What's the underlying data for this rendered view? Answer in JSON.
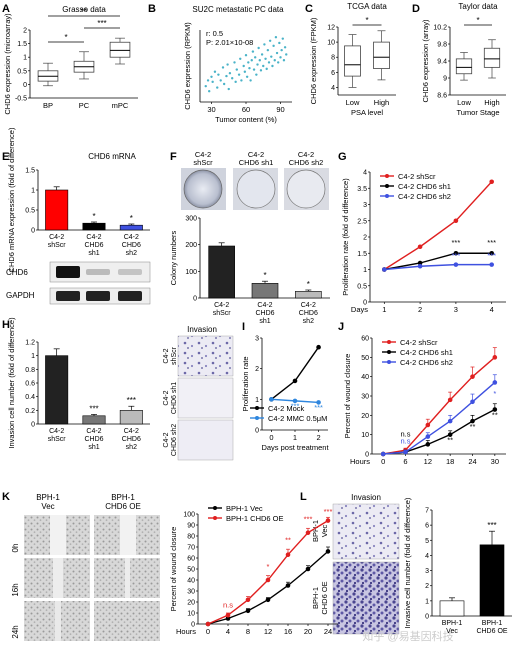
{
  "figure": {
    "panel_letters": [
      "A",
      "B",
      "C",
      "D",
      "E",
      "F",
      "G",
      "H",
      "I",
      "J",
      "K",
      "L"
    ],
    "watermark": "知乎 @易基因科技"
  },
  "panelE": {
    "title": "CHD6 mRNA",
    "blot_labels": [
      "CHD6",
      "GAPDH"
    ]
  },
  "panelF": {
    "group_labels": [
      "C4-2\nshScr",
      "C4-2\nCHD6 sh1",
      "C4-2\nCHD6 sh2"
    ]
  },
  "panelH": {
    "image_title": "Invasion",
    "image_row_labels": [
      "C4-2\nshScr",
      "C4-2\nCHD6 sh1",
      "C4-2\nCHD6 sh2"
    ]
  },
  "panelK": {
    "group_headers": [
      "BPH-1\nVec",
      "BPH-1\nCHD6 OE"
    ],
    "row_labels": [
      "0h",
      "16h",
      "24h"
    ]
  },
  "panelL": {
    "image_title": "Invasion",
    "row_labels": [
      "BPH-1\nVec",
      "BPH-1\nCHD6 OE"
    ]
  },
  "chart_data": [
    {
      "id": "A",
      "type": "box",
      "title": "Grasso data",
      "ylabel": "CHD6 expression (microarray)",
      "categories": [
        "BP",
        "PC",
        "mPC"
      ],
      "ylim": [
        -0.5,
        2.0
      ],
      "yticks": [
        -0.5,
        0,
        0.5,
        1,
        1.5,
        2
      ],
      "boxes": [
        {
          "min": -0.05,
          "q1": 0.12,
          "median": 0.3,
          "q3": 0.5,
          "max": 0.78
        },
        {
          "min": 0.2,
          "q1": 0.45,
          "median": 0.65,
          "q3": 0.85,
          "max": 1.2
        },
        {
          "min": 0.75,
          "q1": 1.0,
          "median": 1.25,
          "q3": 1.55,
          "max": 1.7
        }
      ],
      "brackets": [
        {
          "from": 0,
          "to": 1,
          "label": "*"
        },
        {
          "from": 1,
          "to": 2,
          "label": "***"
        },
        {
          "from": 0,
          "to": 2,
          "label": "**"
        }
      ]
    },
    {
      "id": "B",
      "type": "scatter",
      "title": "SU2C metastatic PC data",
      "xlabel": "Tumor content (%)",
      "ylabel": "CHD6 expression (RPKM)",
      "xlim": [
        20,
        100
      ],
      "xticks": [
        30,
        60,
        90
      ],
      "ylim": [
        0,
        1
      ],
      "stats": [
        "r: 0.5",
        "P: 2.01×10-08"
      ],
      "points": [
        [
          25,
          0.22
        ],
        [
          27,
          0.3
        ],
        [
          28,
          0.15
        ],
        [
          30,
          0.35
        ],
        [
          31,
          0.28
        ],
        [
          33,
          0.42
        ],
        [
          35,
          0.2
        ],
        [
          36,
          0.38
        ],
        [
          38,
          0.3
        ],
        [
          40,
          0.48
        ],
        [
          41,
          0.25
        ],
        [
          43,
          0.36
        ],
        [
          44,
          0.52
        ],
        [
          45,
          0.18
        ],
        [
          46,
          0.4
        ],
        [
          48,
          0.33
        ],
        [
          50,
          0.55
        ],
        [
          51,
          0.28
        ],
        [
          52,
          0.45
        ],
        [
          54,
          0.38
        ],
        [
          55,
          0.6
        ],
        [
          56,
          0.3
        ],
        [
          58,
          0.5
        ],
        [
          59,
          0.42
        ],
        [
          60,
          0.65
        ],
        [
          61,
          0.35
        ],
        [
          62,
          0.55
        ],
        [
          63,
          0.47
        ],
        [
          64,
          0.3
        ],
        [
          65,
          0.58
        ],
        [
          66,
          0.7
        ],
        [
          67,
          0.45
        ],
        [
          68,
          0.62
        ],
        [
          69,
          0.38
        ],
        [
          70,
          0.52
        ],
        [
          71,
          0.75
        ],
        [
          72,
          0.58
        ],
        [
          73,
          0.44
        ],
        [
          74,
          0.66
        ],
        [
          75,
          0.5
        ],
        [
          76,
          0.8
        ],
        [
          77,
          0.6
        ],
        [
          78,
          0.46
        ],
        [
          79,
          0.72
        ],
        [
          80,
          0.55
        ],
        [
          81,
          0.85
        ],
        [
          82,
          0.63
        ],
        [
          83,
          0.5
        ],
        [
          84,
          0.78
        ],
        [
          85,
          0.58
        ],
        [
          86,
          0.9
        ],
        [
          87,
          0.68
        ],
        [
          88,
          0.55
        ],
        [
          89,
          0.82
        ],
        [
          90,
          0.62
        ],
        [
          91,
          0.72
        ],
        [
          92,
          0.88
        ],
        [
          93,
          0.58
        ],
        [
          94,
          0.76
        ],
        [
          95,
          0.66
        ]
      ]
    },
    {
      "id": "C",
      "type": "box",
      "title": "TCGA data",
      "ylabel": "CHD6 expression (FPKM)",
      "xlabel": "PSA level",
      "categories": [
        "Low",
        "High"
      ],
      "ylim": [
        3,
        12
      ],
      "yticks": [
        4,
        6,
        8,
        10,
        12
      ],
      "boxes": [
        {
          "min": 4.0,
          "q1": 5.5,
          "median": 7.0,
          "q3": 9.5,
          "max": 11.0
        },
        {
          "min": 5.0,
          "q1": 6.5,
          "median": 8.0,
          "q3": 10.0,
          "max": 11.5
        }
      ],
      "brackets": [
        {
          "from": 0,
          "to": 1,
          "label": "*"
        }
      ]
    },
    {
      "id": "D",
      "type": "box",
      "title": "Taylor data",
      "ylabel": "CHD6 expression (array)",
      "xlabel": "Tumor Stage",
      "categories": [
        "Low",
        "High"
      ],
      "ylim": [
        8.6,
        10.2
      ],
      "yticks": [
        8.6,
        9.0,
        9.4,
        9.8,
        10.2
      ],
      "boxes": [
        {
          "min": 8.95,
          "q1": 9.1,
          "median": 9.25,
          "q3": 9.45,
          "max": 9.6
        },
        {
          "min": 9.0,
          "q1": 9.25,
          "median": 9.45,
          "q3": 9.7,
          "max": 9.9
        }
      ],
      "brackets": [
        {
          "from": 0,
          "to": 1,
          "label": "*"
        }
      ]
    },
    {
      "id": "E",
      "type": "bar",
      "ylabel": "CHD6 mRNA expression (fold of difference)",
      "categories": [
        "C4-2 shScr",
        "C4-2 CHD6 sh1",
        "C4-2 CHD6 sh2"
      ],
      "values": [
        1.0,
        0.17,
        0.12
      ],
      "errors": [
        0.08,
        0.03,
        0.03
      ],
      "colors": [
        "#ff0000",
        "#000000",
        "#3f51e0"
      ],
      "labels": [
        "",
        "*",
        "*"
      ],
      "ylim": [
        0,
        1.5
      ],
      "yticks": [
        0,
        0.5,
        1,
        1.5
      ]
    },
    {
      "id": "F",
      "type": "bar",
      "ylabel": "Colony numbers",
      "categories": [
        "C4-2 shScr",
        "C4-2 CHD6 sh1",
        "C4-2 CHD6 sh2"
      ],
      "values": [
        195,
        55,
        25
      ],
      "errors": [
        12,
        8,
        5
      ],
      "colors": [
        "#222222",
        "#777777",
        "#bbbbbb"
      ],
      "labels": [
        "",
        "*",
        "*"
      ],
      "ylim": [
        0,
        300
      ],
      "yticks": [
        0,
        100,
        200,
        300
      ]
    },
    {
      "id": "G",
      "type": "line",
      "ylabel": "Proliferation rate (fold of difference)",
      "xlabel": "Days",
      "x": [
        1,
        2,
        3,
        4
      ],
      "xlim": [
        0.6,
        4.4
      ],
      "ylim": [
        0,
        4
      ],
      "yticks": [
        0,
        0.5,
        1,
        1.5,
        2,
        2.5,
        3,
        3.5,
        4
      ],
      "series": [
        {
          "name": "C4-2 shScr",
          "color": "#e02020",
          "values": [
            1.0,
            1.7,
            2.5,
            3.7
          ]
        },
        {
          "name": "C4-2 CHD6 sh1",
          "color": "#000000",
          "values": [
            1.0,
            1.2,
            1.5,
            1.5
          ]
        },
        {
          "name": "C4-2 CHD6 sh2",
          "color": "#3f51e0",
          "values": [
            1.0,
            1.1,
            1.15,
            1.15
          ]
        }
      ],
      "annotations": [
        {
          "x": 3,
          "y": 1.75,
          "text": "***",
          "color": "#000000"
        },
        {
          "x": 4,
          "y": 1.75,
          "text": "***",
          "color": "#000000"
        },
        {
          "x": 3,
          "y": 1.35,
          "text": "***",
          "color": "#3f51e0"
        },
        {
          "x": 4,
          "y": 1.35,
          "text": "***",
          "color": "#3f51e0"
        }
      ]
    },
    {
      "id": "H",
      "type": "bar",
      "ylabel": "Invasion cell number (fold of difference)",
      "categories": [
        "C4-2 shScr",
        "C4-2 CHD6 sh1",
        "C4-2 CHD6 sh2"
      ],
      "values": [
        1.0,
        0.12,
        0.2
      ],
      "errors": [
        0.1,
        0.02,
        0.06
      ],
      "colors": [
        "#222222",
        "#777777",
        "#bbbbbb"
      ],
      "labels": [
        "",
        "***",
        "***"
      ],
      "ylim": [
        0,
        1.2
      ],
      "yticks": [
        0,
        0.2,
        0.4,
        0.6,
        0.8,
        1,
        1.2
      ]
    },
    {
      "id": "I",
      "type": "line",
      "ylabel": "Proliferation rate",
      "xlabel": "Days post treatment",
      "x": [
        0,
        1,
        2
      ],
      "xlim": [
        -0.4,
        2.4
      ],
      "ylim": [
        0,
        3
      ],
      "yticks": [
        0,
        1,
        2,
        3
      ],
      "series": [
        {
          "name": "C4-2 Mock",
          "color": "#000000",
          "values": [
            1.0,
            1.6,
            2.7
          ]
        },
        {
          "name": "C4-2 MMC 0.5μM",
          "color": "#2e86de",
          "values": [
            1.0,
            0.95,
            0.9
          ]
        }
      ],
      "annotations": [
        {
          "x": 1,
          "y": 0.7,
          "text": "***",
          "color": "#2e86de"
        },
        {
          "x": 2,
          "y": 0.65,
          "text": "***",
          "color": "#2e86de"
        }
      ]
    },
    {
      "id": "J",
      "type": "line",
      "ylabel": "Percent of wound closure",
      "xlabel": "Hours",
      "x": [
        0,
        6,
        12,
        18,
        24,
        30
      ],
      "xlim": [
        -3,
        33
      ],
      "ylim": [
        0,
        60
      ],
      "yticks": [
        0,
        10,
        20,
        30,
        40,
        50,
        60
      ],
      "series": [
        {
          "name": "C4-2 shScr",
          "color": "#e02020",
          "values": [
            0,
            2,
            15,
            28,
            40,
            50
          ],
          "errors": [
            0,
            1,
            3,
            4,
            5,
            5
          ]
        },
        {
          "name": "C4-2 CHD6 sh1",
          "color": "#000000",
          "values": [
            0,
            1,
            5,
            10,
            17,
            23
          ],
          "errors": [
            0,
            1,
            2,
            2,
            3,
            3
          ]
        },
        {
          "name": "C4-2 CHD6 sh2",
          "color": "#3f51e0",
          "values": [
            0,
            1,
            9,
            17,
            27,
            37
          ],
          "errors": [
            0,
            1,
            2,
            3,
            4,
            4
          ]
        }
      ],
      "annotations": [
        {
          "x": 6,
          "y": 9,
          "text": "n.s",
          "color": "#000000"
        },
        {
          "x": 6,
          "y": 5.5,
          "text": "n.s",
          "color": "#3f51e0"
        },
        {
          "x": 18,
          "y": 6,
          "text": "**",
          "color": "#000000"
        },
        {
          "x": 24,
          "y": 13,
          "text": "**",
          "color": "#000000"
        },
        {
          "x": 30,
          "y": 19,
          "text": "**",
          "color": "#000000"
        },
        {
          "x": 30,
          "y": 30,
          "text": "*",
          "color": "#3f51e0"
        }
      ]
    },
    {
      "id": "K",
      "type": "line",
      "ylabel": "Percent of wound closure",
      "xlabel": "Hours",
      "x": [
        0,
        4,
        8,
        12,
        16,
        20,
        24
      ],
      "xlim": [
        -2,
        26
      ],
      "ylim": [
        0,
        100
      ],
      "yticks": [
        0,
        10,
        20,
        30,
        40,
        50,
        60,
        70,
        80,
        90,
        100
      ],
      "series": [
        {
          "name": "BPH-1 Vec",
          "color": "#000000",
          "values": [
            0,
            5,
            12,
            22,
            35,
            50,
            66
          ],
          "errors": [
            0,
            1,
            2,
            2,
            3,
            3,
            4
          ]
        },
        {
          "name": "BPH-1 CHD6 OE",
          "color": "#e02020",
          "values": [
            0,
            8,
            22,
            40,
            63,
            83,
            94
          ],
          "errors": [
            0,
            2,
            3,
            4,
            5,
            4,
            3
          ]
        }
      ],
      "annotations": [
        {
          "x": 4,
          "y": 15,
          "text": "n.s",
          "color": "#e02020"
        },
        {
          "x": 12,
          "y": 50,
          "text": "*",
          "color": "#e02020"
        },
        {
          "x": 16,
          "y": 74,
          "text": "**",
          "color": "#e02020"
        },
        {
          "x": 20,
          "y": 93,
          "text": "***",
          "color": "#e02020"
        },
        {
          "x": 24,
          "y": 100,
          "text": "***",
          "color": "#e02020"
        }
      ]
    },
    {
      "id": "L",
      "type": "bar",
      "ylabel": "Invasive cell number (fold of difference)",
      "categories": [
        "BPH-1 Vec",
        "BPH-1 CHD6 OE"
      ],
      "values": [
        1.0,
        4.7
      ],
      "errors": [
        0.2,
        0.9
      ],
      "colors": [
        "#ffffff",
        "#000000"
      ],
      "labels": [
        "",
        "***"
      ],
      "ylim": [
        0,
        7
      ],
      "yticks": [
        0,
        1,
        2,
        3,
        4,
        5,
        6,
        7
      ]
    }
  ]
}
